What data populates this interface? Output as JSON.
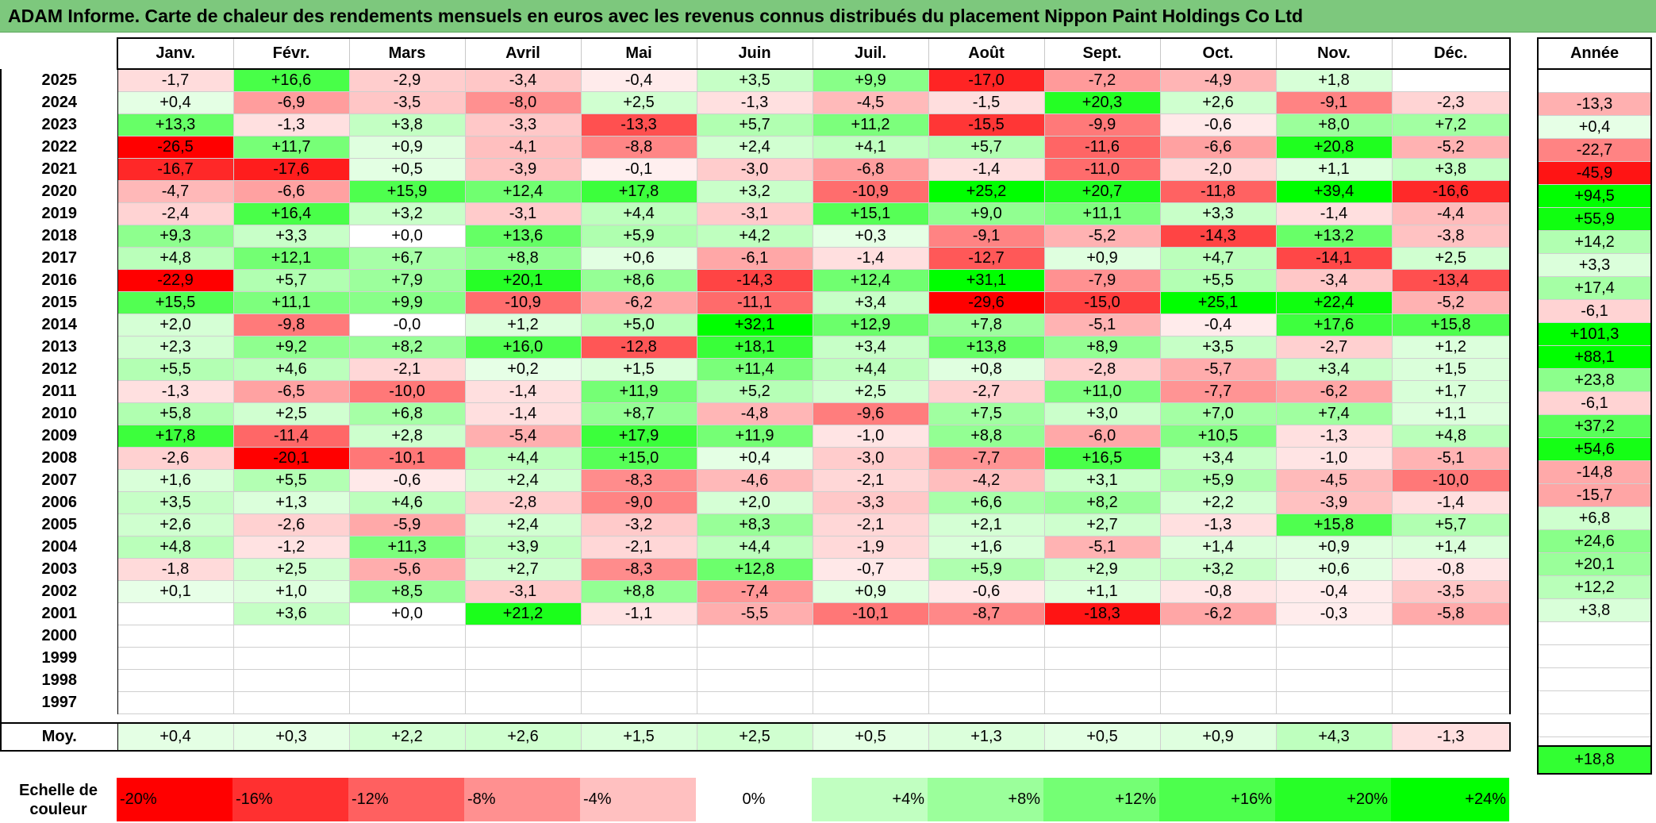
{
  "title": "ADAM Informe. Carte de chaleur des rendements mensuels en euros avec les revenus connus distribués du placement Nippon Paint Holdings Co Ltd",
  "chart_data": {
    "type": "heatmap",
    "title": "ADAM Informe. Carte de chaleur des rendements mensuels en euros avec les revenus connus distribués du placement Nippon Paint Holdings Co Ltd",
    "months": [
      "Janv.",
      "Févr.",
      "Mars",
      "Avril",
      "Mai",
      "Juin",
      "Juil.",
      "Août",
      "Sept.",
      "Oct.",
      "Nov.",
      "Déc."
    ],
    "year_header": "Année",
    "rows": [
      {
        "year": "2025",
        "values": [
          "-1,7",
          "+16,6",
          "-2,9",
          "-3,4",
          "-0,4",
          "+3,5",
          "+9,9",
          "-17,0",
          "-7,2",
          "-4,9",
          "+1,8",
          ""
        ],
        "annual": ""
      },
      {
        "year": "2024",
        "values": [
          "+0,4",
          "-6,9",
          "-3,5",
          "-8,0",
          "+2,5",
          "-1,3",
          "-4,5",
          "-1,5",
          "+20,3",
          "+2,6",
          "-9,1",
          "-2,3"
        ],
        "annual": "-13,3"
      },
      {
        "year": "2023",
        "values": [
          "+13,3",
          "-1,3",
          "+3,8",
          "-3,3",
          "-13,3",
          "+5,7",
          "+11,2",
          "-15,5",
          "-9,9",
          "-0,6",
          "+8,0",
          "+7,2"
        ],
        "annual": "+0,4"
      },
      {
        "year": "2022",
        "values": [
          "-26,5",
          "+11,7",
          "+0,9",
          "-4,1",
          "-8,8",
          "+2,4",
          "+4,1",
          "+5,7",
          "-11,6",
          "-6,6",
          "+20,8",
          "-5,2"
        ],
        "annual": "-22,7"
      },
      {
        "year": "2021",
        "values": [
          "-16,7",
          "-17,6",
          "+0,5",
          "-3,9",
          "-0,1",
          "-3,0",
          "-6,8",
          "-1,4",
          "-11,0",
          "-2,0",
          "+1,1",
          "+3,8"
        ],
        "annual": "-45,9"
      },
      {
        "year": "2020",
        "values": [
          "-4,7",
          "-6,6",
          "+15,9",
          "+12,4",
          "+17,8",
          "+3,2",
          "-10,9",
          "+25,2",
          "+20,7",
          "-11,8",
          "+39,4",
          "-16,6"
        ],
        "annual": "+94,5"
      },
      {
        "year": "2019",
        "values": [
          "-2,4",
          "+16,4",
          "+3,2",
          "-3,1",
          "+4,4",
          "-3,1",
          "+15,1",
          "+9,0",
          "+11,1",
          "+3,3",
          "-1,4",
          "-4,4"
        ],
        "annual": "+55,9"
      },
      {
        "year": "2018",
        "values": [
          "+9,3",
          "+3,3",
          "+0,0",
          "+13,6",
          "+5,9",
          "+4,2",
          "+0,3",
          "-9,1",
          "-5,2",
          "-14,3",
          "+13,2",
          "-3,8"
        ],
        "annual": "+14,2"
      },
      {
        "year": "2017",
        "values": [
          "+4,8",
          "+12,1",
          "+6,7",
          "+8,8",
          "+0,6",
          "-6,1",
          "-1,4",
          "-12,7",
          "+0,9",
          "+4,7",
          "-14,1",
          "+2,5"
        ],
        "annual": "+3,3"
      },
      {
        "year": "2016",
        "values": [
          "-22,9",
          "+5,7",
          "+7,9",
          "+20,1",
          "+8,6",
          "-14,3",
          "+12,4",
          "+31,1",
          "-7,9",
          "+5,5",
          "-3,4",
          "-13,4"
        ],
        "annual": "+17,4"
      },
      {
        "year": "2015",
        "values": [
          "+15,5",
          "+11,1",
          "+9,9",
          "-10,9",
          "-6,2",
          "-11,1",
          "+3,4",
          "-29,6",
          "-15,0",
          "+25,1",
          "+22,4",
          "-5,2"
        ],
        "annual": "-6,1"
      },
      {
        "year": "2014",
        "values": [
          "+2,0",
          "-9,8",
          "-0,0",
          "+1,2",
          "+5,0",
          "+32,1",
          "+12,9",
          "+7,8",
          "-5,1",
          "-0,4",
          "+17,6",
          "+15,8"
        ],
        "annual": "+101,3"
      },
      {
        "year": "2013",
        "values": [
          "+2,3",
          "+9,2",
          "+8,2",
          "+16,0",
          "-12,8",
          "+18,1",
          "+3,4",
          "+13,8",
          "+8,9",
          "+3,5",
          "-2,7",
          "+1,2"
        ],
        "annual": "+88,1"
      },
      {
        "year": "2012",
        "values": [
          "+5,5",
          "+4,6",
          "-2,1",
          "+0,2",
          "+1,5",
          "+11,4",
          "+4,4",
          "+0,8",
          "-2,8",
          "-5,7",
          "+3,4",
          "+1,5"
        ],
        "annual": "+23,8"
      },
      {
        "year": "2011",
        "values": [
          "-1,3",
          "-6,5",
          "-10,0",
          "-1,4",
          "+11,9",
          "+5,2",
          "+2,5",
          "-2,7",
          "+11,0",
          "-7,7",
          "-6,2",
          "+1,7"
        ],
        "annual": "-6,1"
      },
      {
        "year": "2010",
        "values": [
          "+5,8",
          "+2,5",
          "+6,8",
          "-1,4",
          "+8,7",
          "-4,8",
          "-9,6",
          "+7,5",
          "+3,0",
          "+7,0",
          "+7,4",
          "+1,1"
        ],
        "annual": "+37,2"
      },
      {
        "year": "2009",
        "values": [
          "+17,8",
          "-11,4",
          "+2,8",
          "-5,4",
          "+17,9",
          "+11,9",
          "-1,0",
          "+8,8",
          "-6,0",
          "+10,5",
          "-1,3",
          "+4,8"
        ],
        "annual": "+54,6"
      },
      {
        "year": "2008",
        "values": [
          "-2,6",
          "-20,1",
          "-10,1",
          "+4,4",
          "+15,0",
          "+0,4",
          "-3,0",
          "-7,7",
          "+16,5",
          "+3,4",
          "-1,0",
          "-5,1"
        ],
        "annual": "-14,8"
      },
      {
        "year": "2007",
        "values": [
          "+1,6",
          "+5,5",
          "-0,6",
          "+2,4",
          "-8,3",
          "-4,6",
          "-2,1",
          "-4,2",
          "+3,1",
          "+5,9",
          "-4,5",
          "-10,0"
        ],
        "annual": "-15,7"
      },
      {
        "year": "2006",
        "values": [
          "+3,5",
          "+1,3",
          "+4,6",
          "-2,8",
          "-9,0",
          "+2,0",
          "-3,3",
          "+6,6",
          "+8,2",
          "+2,2",
          "-3,9",
          "-1,4"
        ],
        "annual": "+6,8"
      },
      {
        "year": "2005",
        "values": [
          "+2,6",
          "-2,6",
          "-5,9",
          "+2,4",
          "-3,2",
          "+8,3",
          "-2,1",
          "+2,1",
          "+2,7",
          "-1,3",
          "+15,8",
          "+5,7"
        ],
        "annual": "+24,6"
      },
      {
        "year": "2004",
        "values": [
          "+4,8",
          "-1,2",
          "+11,3",
          "+3,9",
          "-2,1",
          "+4,4",
          "-1,9",
          "+1,6",
          "-5,1",
          "+1,4",
          "+0,9",
          "+1,4"
        ],
        "annual": "+20,1"
      },
      {
        "year": "2003",
        "values": [
          "-1,8",
          "+2,5",
          "-5,6",
          "+2,7",
          "-8,3",
          "+12,8",
          "-0,7",
          "+5,9",
          "+2,9",
          "+3,2",
          "+0,6",
          "-0,8"
        ],
        "annual": "+12,2"
      },
      {
        "year": "2002",
        "values": [
          "+0,1",
          "+1,0",
          "+8,5",
          "-3,1",
          "+8,8",
          "-7,4",
          "+0,9",
          "-0,6",
          "+1,1",
          "-0,8",
          "-0,4",
          "-3,5"
        ],
        "annual": "+3,8"
      },
      {
        "year": "2001",
        "values": [
          "",
          "+3,6",
          "+0,0",
          "+21,2",
          "-1,1",
          "-5,5",
          "-10,1",
          "-8,7",
          "-18,3",
          "-6,2",
          "-0,3",
          "-5,8"
        ],
        "annual": ""
      },
      {
        "year": "2000",
        "values": [
          "",
          "",
          "",
          "",
          "",
          "",
          "",
          "",
          "",
          "",
          "",
          ""
        ],
        "annual": ""
      },
      {
        "year": "1999",
        "values": [
          "",
          "",
          "",
          "",
          "",
          "",
          "",
          "",
          "",
          "",
          "",
          ""
        ],
        "annual": ""
      },
      {
        "year": "1998",
        "values": [
          "",
          "",
          "",
          "",
          "",
          "",
          "",
          "",
          "",
          "",
          "",
          ""
        ],
        "annual": ""
      },
      {
        "year": "1997",
        "values": [
          "",
          "",
          "",
          "",
          "",
          "",
          "",
          "",
          "",
          "",
          "",
          ""
        ],
        "annual": ""
      }
    ],
    "average": {
      "label": "Moy.",
      "values": [
        "+0,4",
        "+0,3",
        "+2,2",
        "+2,6",
        "+1,5",
        "+2,5",
        "+0,5",
        "+1,3",
        "+0,5",
        "+0,9",
        "+4,3",
        "-1,3"
      ],
      "annual": "+18,8"
    },
    "color_scale": {
      "label": "Echelle de couleur",
      "stops": [
        "-20%",
        "-16%",
        "-12%",
        "-8%",
        "-4%",
        "0%",
        "+4%",
        "+8%",
        "+12%",
        "+16%",
        "+20%",
        "+24%"
      ]
    }
  }
}
